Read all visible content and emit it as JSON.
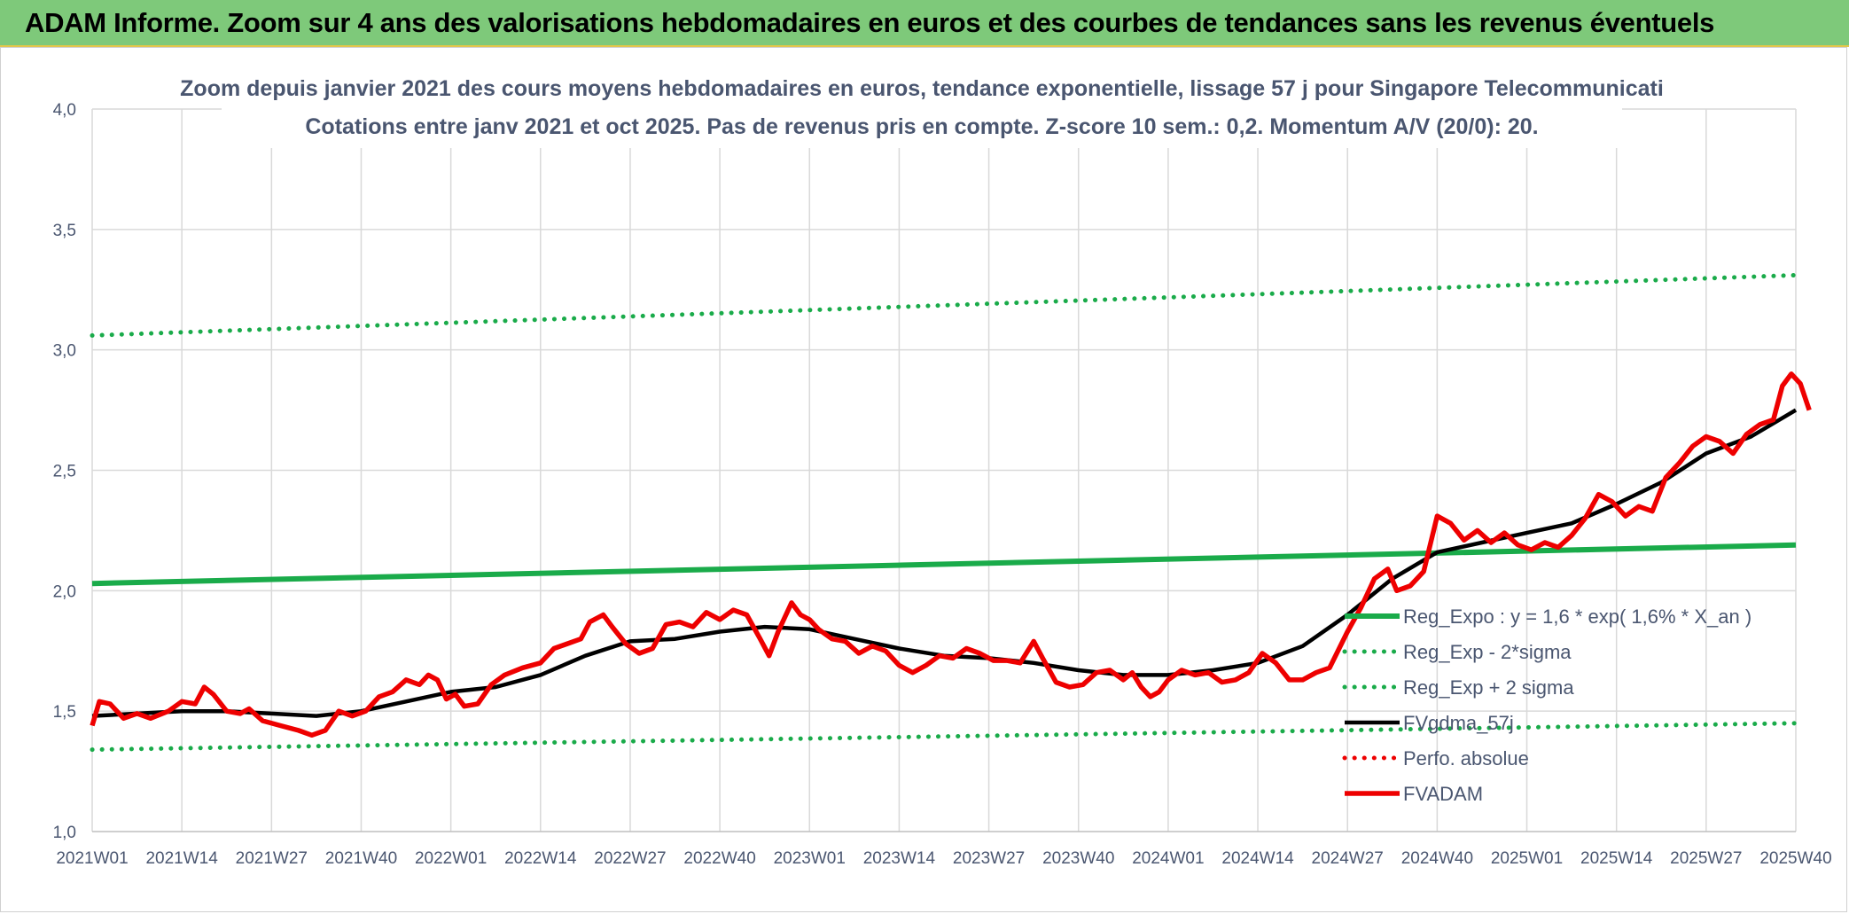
{
  "header": {
    "title": "ADAM Informe. Zoom sur 4 ans des valorisations hebdomadaires en euros et des courbes de tendances sans les revenus éventuels"
  },
  "colors": {
    "header_bg": "#7ec97a",
    "reg_green": "#1aab4a",
    "fvgdma": "#000000",
    "fvadam": "#ee0000",
    "perfo": "#ee0000",
    "grid": "#d9d9d9",
    "text": "#4a5670"
  },
  "chart_data": {
    "type": "line",
    "title_line1": "Zoom depuis janvier 2021 des cours moyens hebdomadaires en euros, tendance exponentielle, lissage 57 j pour Singapore Telecommunicati",
    "title_line2": "Cotations entre janv 2021 et oct 2025. Pas de revenus pris en compte. Z-score 10 sem.: 0,2. Momentum A/V (20/0): 20.",
    "ylim": [
      1.0,
      4.0
    ],
    "yticks": [
      "1,0",
      "1,5",
      "2,0",
      "2,5",
      "3,0",
      "3,5",
      "4,0"
    ],
    "ytick_values": [
      1.0,
      1.5,
      2.0,
      2.5,
      3.0,
      3.5,
      4.0
    ],
    "xticks": [
      "2021W01",
      "2021W14",
      "2021W27",
      "2021W40",
      "2022W01",
      "2022W14",
      "2022W27",
      "2022W40",
      "2023W01",
      "2023W14",
      "2023W27",
      "2023W40",
      "2024W01",
      "2024W14",
      "2024W27",
      "2024W40",
      "2025W01",
      "2025W14",
      "2025W27",
      "2025W40"
    ],
    "grid": true,
    "legend_position": "right-center",
    "series": [
      {
        "name": "Reg_Expo : y = 1,6 * exp( 1,6% *  X_an )",
        "style": "solid-thick",
        "color": "#1aab4a",
        "values": [
          [
            0,
            2.03
          ],
          [
            19,
            2.19
          ]
        ]
      },
      {
        "name": "Reg_Exp - 2*sigma",
        "style": "dotted",
        "color": "#1aab4a",
        "values": [
          [
            0,
            1.34
          ],
          [
            19,
            1.45
          ]
        ]
      },
      {
        "name": "Reg_Exp + 2 sigma",
        "style": "dotted",
        "color": "#1aab4a",
        "values": [
          [
            0,
            3.06
          ],
          [
            19,
            3.31
          ]
        ]
      },
      {
        "name": "FVgdma_57j",
        "style": "solid",
        "color": "#000000",
        "values": [
          [
            0,
            1.48
          ],
          [
            0.5,
            1.49
          ],
          [
            1,
            1.5
          ],
          [
            1.5,
            1.5
          ],
          [
            2,
            1.49
          ],
          [
            2.5,
            1.48
          ],
          [
            3,
            1.5
          ],
          [
            3.5,
            1.54
          ],
          [
            4,
            1.58
          ],
          [
            4.5,
            1.6
          ],
          [
            5,
            1.65
          ],
          [
            5.5,
            1.73
          ],
          [
            6,
            1.79
          ],
          [
            6.5,
            1.8
          ],
          [
            7,
            1.83
          ],
          [
            7.5,
            1.85
          ],
          [
            8,
            1.84
          ],
          [
            8.5,
            1.8
          ],
          [
            9,
            1.76
          ],
          [
            9.5,
            1.73
          ],
          [
            10,
            1.72
          ],
          [
            10.5,
            1.7
          ],
          [
            11,
            1.67
          ],
          [
            11.5,
            1.65
          ],
          [
            12,
            1.65
          ],
          [
            12.5,
            1.67
          ],
          [
            13,
            1.7
          ],
          [
            13.5,
            1.77
          ],
          [
            14,
            1.9
          ],
          [
            14.5,
            2.05
          ],
          [
            15,
            2.16
          ],
          [
            15.5,
            2.2
          ],
          [
            16,
            2.24
          ],
          [
            16.5,
            2.28
          ],
          [
            17,
            2.36
          ],
          [
            17.5,
            2.45
          ],
          [
            18,
            2.57
          ],
          [
            18.5,
            2.64
          ],
          [
            19,
            2.75
          ]
        ]
      },
      {
        "name": "Perfo. absolue",
        "style": "dotted",
        "color": "#ee0000",
        "values": []
      },
      {
        "name": "FVADAM",
        "style": "solid-thick",
        "color": "#ee0000",
        "values": [
          [
            0,
            1.44
          ],
          [
            0.08,
            1.54
          ],
          [
            0.2,
            1.53
          ],
          [
            0.35,
            1.47
          ],
          [
            0.5,
            1.49
          ],
          [
            0.65,
            1.47
          ],
          [
            0.85,
            1.5
          ],
          [
            1,
            1.54
          ],
          [
            1.15,
            1.53
          ],
          [
            1.25,
            1.6
          ],
          [
            1.35,
            1.57
          ],
          [
            1.5,
            1.5
          ],
          [
            1.65,
            1.49
          ],
          [
            1.75,
            1.51
          ],
          [
            1.9,
            1.46
          ],
          [
            2.1,
            1.44
          ],
          [
            2.3,
            1.42
          ],
          [
            2.45,
            1.4
          ],
          [
            2.6,
            1.42
          ],
          [
            2.75,
            1.5
          ],
          [
            2.9,
            1.48
          ],
          [
            3.05,
            1.5
          ],
          [
            3.2,
            1.56
          ],
          [
            3.35,
            1.58
          ],
          [
            3.5,
            1.63
          ],
          [
            3.65,
            1.61
          ],
          [
            3.75,
            1.65
          ],
          [
            3.85,
            1.63
          ],
          [
            3.95,
            1.55
          ],
          [
            4.05,
            1.57
          ],
          [
            4.15,
            1.52
          ],
          [
            4.3,
            1.53
          ],
          [
            4.45,
            1.61
          ],
          [
            4.6,
            1.65
          ],
          [
            4.8,
            1.68
          ],
          [
            5,
            1.7
          ],
          [
            5.15,
            1.76
          ],
          [
            5.3,
            1.78
          ],
          [
            5.45,
            1.8
          ],
          [
            5.55,
            1.87
          ],
          [
            5.7,
            1.9
          ],
          [
            5.8,
            1.85
          ],
          [
            5.95,
            1.78
          ],
          [
            6.1,
            1.74
          ],
          [
            6.25,
            1.76
          ],
          [
            6.4,
            1.86
          ],
          [
            6.55,
            1.87
          ],
          [
            6.7,
            1.85
          ],
          [
            6.85,
            1.91
          ],
          [
            7,
            1.88
          ],
          [
            7.15,
            1.92
          ],
          [
            7.3,
            1.9
          ],
          [
            7.45,
            1.8
          ],
          [
            7.55,
            1.73
          ],
          [
            7.65,
            1.83
          ],
          [
            7.8,
            1.95
          ],
          [
            7.9,
            1.9
          ],
          [
            8,
            1.88
          ],
          [
            8.1,
            1.84
          ],
          [
            8.25,
            1.8
          ],
          [
            8.4,
            1.79
          ],
          [
            8.55,
            1.74
          ],
          [
            8.7,
            1.77
          ],
          [
            8.85,
            1.75
          ],
          [
            9,
            1.69
          ],
          [
            9.15,
            1.66
          ],
          [
            9.3,
            1.69
          ],
          [
            9.45,
            1.73
          ],
          [
            9.6,
            1.72
          ],
          [
            9.75,
            1.76
          ],
          [
            9.9,
            1.74
          ],
          [
            10.05,
            1.71
          ],
          [
            10.2,
            1.71
          ],
          [
            10.35,
            1.7
          ],
          [
            10.5,
            1.79
          ],
          [
            10.6,
            1.72
          ],
          [
            10.75,
            1.62
          ],
          [
            10.9,
            1.6
          ],
          [
            11.05,
            1.61
          ],
          [
            11.2,
            1.66
          ],
          [
            11.35,
            1.67
          ],
          [
            11.5,
            1.63
          ],
          [
            11.6,
            1.66
          ],
          [
            11.7,
            1.6
          ],
          [
            11.8,
            1.56
          ],
          [
            11.9,
            1.58
          ],
          [
            12,
            1.63
          ],
          [
            12.15,
            1.67
          ],
          [
            12.3,
            1.65
          ],
          [
            12.45,
            1.66
          ],
          [
            12.6,
            1.62
          ],
          [
            12.75,
            1.63
          ],
          [
            12.9,
            1.66
          ],
          [
            13.05,
            1.74
          ],
          [
            13.2,
            1.7
          ],
          [
            13.35,
            1.63
          ],
          [
            13.5,
            1.63
          ],
          [
            13.65,
            1.66
          ],
          [
            13.8,
            1.68
          ],
          [
            14,
            1.83
          ],
          [
            14.15,
            1.93
          ],
          [
            14.3,
            2.05
          ],
          [
            14.45,
            2.09
          ],
          [
            14.55,
            2.0
          ],
          [
            14.7,
            2.02
          ],
          [
            14.85,
            2.08
          ],
          [
            15,
            2.31
          ],
          [
            15.15,
            2.28
          ],
          [
            15.3,
            2.21
          ],
          [
            15.45,
            2.25
          ],
          [
            15.6,
            2.2
          ],
          [
            15.75,
            2.24
          ],
          [
            15.9,
            2.19
          ],
          [
            16.05,
            2.17
          ],
          [
            16.2,
            2.2
          ],
          [
            16.35,
            2.18
          ],
          [
            16.5,
            2.23
          ],
          [
            16.65,
            2.3
          ],
          [
            16.8,
            2.4
          ],
          [
            16.95,
            2.37
          ],
          [
            17.1,
            2.31
          ],
          [
            17.25,
            2.35
          ],
          [
            17.4,
            2.33
          ],
          [
            17.55,
            2.47
          ],
          [
            17.7,
            2.53
          ],
          [
            17.85,
            2.6
          ],
          [
            18,
            2.64
          ],
          [
            18.15,
            2.62
          ],
          [
            18.3,
            2.57
          ],
          [
            18.45,
            2.65
          ],
          [
            18.6,
            2.69
          ],
          [
            18.75,
            2.71
          ],
          [
            18.85,
            2.85
          ],
          [
            18.95,
            2.9
          ],
          [
            19.05,
            2.86
          ],
          [
            19.15,
            2.75
          ]
        ]
      }
    ]
  }
}
